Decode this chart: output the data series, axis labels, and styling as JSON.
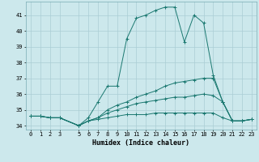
{
  "xlabel": "Humidex (Indice chaleur)",
  "ylabel": "",
  "bg_color": "#cce8ec",
  "grid_color": "#aacdd4",
  "line_color": "#1a7870",
  "xlim": [
    -0.5,
    23.5
  ],
  "ylim": [
    33.75,
    41.85
  ],
  "yticks": [
    34,
    35,
    36,
    37,
    38,
    39,
    40,
    41
  ],
  "xticks": [
    0,
    1,
    2,
    3,
    5,
    6,
    7,
    8,
    9,
    10,
    11,
    12,
    13,
    14,
    15,
    16,
    17,
    18,
    19,
    20,
    21,
    22,
    23
  ],
  "lines": [
    {
      "x": [
        0,
        1,
        2,
        3,
        5,
        6,
        7,
        8,
        9,
        10,
        11,
        12,
        13,
        14,
        15,
        16,
        17,
        18,
        19,
        20,
        21,
        22,
        23
      ],
      "y": [
        34.6,
        34.6,
        34.5,
        34.5,
        34.0,
        34.5,
        35.5,
        36.5,
        36.5,
        39.5,
        40.8,
        41.0,
        41.3,
        41.5,
        41.5,
        39.3,
        41.0,
        40.5,
        37.2,
        35.5,
        34.3,
        34.3,
        34.4
      ]
    },
    {
      "x": [
        0,
        1,
        2,
        3,
        5,
        6,
        7,
        8,
        9,
        10,
        11,
        12,
        13,
        14,
        15,
        16,
        17,
        18,
        19,
        20,
        21,
        22,
        23
      ],
      "y": [
        34.6,
        34.6,
        34.5,
        34.5,
        34.0,
        34.3,
        34.5,
        35.0,
        35.3,
        35.5,
        35.8,
        36.0,
        36.2,
        36.5,
        36.7,
        36.8,
        36.9,
        37.0,
        37.0,
        35.5,
        34.3,
        34.3,
        34.4
      ]
    },
    {
      "x": [
        0,
        1,
        2,
        3,
        5,
        6,
        7,
        8,
        9,
        10,
        11,
        12,
        13,
        14,
        15,
        16,
        17,
        18,
        19,
        20,
        21,
        22,
        23
      ],
      "y": [
        34.6,
        34.6,
        34.5,
        34.5,
        34.0,
        34.3,
        34.5,
        34.8,
        35.0,
        35.2,
        35.4,
        35.5,
        35.6,
        35.7,
        35.8,
        35.8,
        35.9,
        36.0,
        35.9,
        35.5,
        34.3,
        34.3,
        34.4
      ]
    },
    {
      "x": [
        0,
        1,
        2,
        3,
        5,
        6,
        7,
        8,
        9,
        10,
        11,
        12,
        13,
        14,
        15,
        16,
        17,
        18,
        19,
        20,
        21,
        22,
        23
      ],
      "y": [
        34.6,
        34.6,
        34.5,
        34.5,
        34.0,
        34.3,
        34.4,
        34.5,
        34.6,
        34.7,
        34.7,
        34.7,
        34.8,
        34.8,
        34.8,
        34.8,
        34.8,
        34.8,
        34.8,
        34.5,
        34.3,
        34.3,
        34.4
      ]
    }
  ]
}
